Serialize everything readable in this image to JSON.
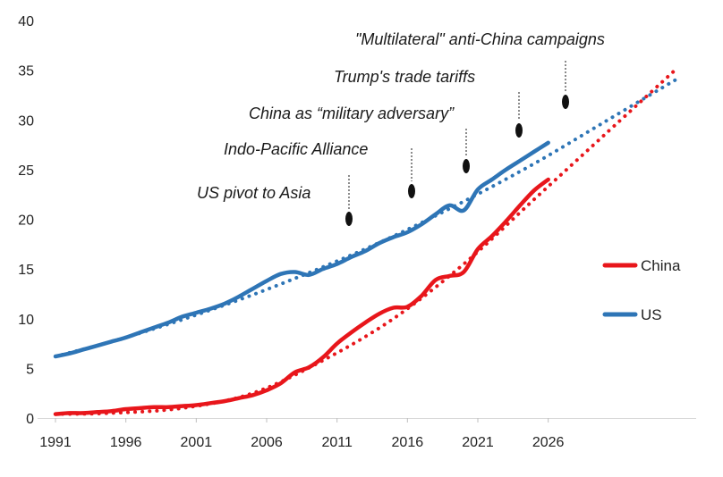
{
  "chart_data": {
    "type": "line",
    "title": "",
    "xlabel": "",
    "ylabel": "",
    "xlim": [
      1991,
      2036
    ],
    "ylim": [
      0,
      40
    ],
    "x_ticks": [
      "1991",
      "1996",
      "2001",
      "2006",
      "2011",
      "2016",
      "2021",
      "2026"
    ],
    "y_ticks": [
      "0",
      "5",
      "10",
      "15",
      "20",
      "25",
      "30",
      "35",
      "40"
    ],
    "legend_position": "right",
    "series": [
      {
        "name": "China",
        "color": "#e8161b",
        "x": [
          1991,
          1992,
          1993,
          1994,
          1995,
          1996,
          1997,
          1998,
          1999,
          2000,
          2001,
          2002,
          2003,
          2004,
          2005,
          2006,
          2007,
          2008,
          2009,
          2010,
          2011,
          2012,
          2013,
          2014,
          2015,
          2016,
          2017,
          2018,
          2019,
          2020,
          2021,
          2022,
          2023,
          2024,
          2025,
          2026
        ],
        "values": [
          0.4,
          0.5,
          0.5,
          0.6,
          0.7,
          0.9,
          1.0,
          1.1,
          1.1,
          1.2,
          1.3,
          1.5,
          1.7,
          2.0,
          2.3,
          2.8,
          3.5,
          4.6,
          5.1,
          6.1,
          7.5,
          8.6,
          9.6,
          10.5,
          11.1,
          11.2,
          12.3,
          13.9,
          14.3,
          14.7,
          17.0,
          18.3,
          19.8,
          21.4,
          22.9,
          24.0
        ],
        "trend_x": [
          1991,
          1995,
          2000,
          2005,
          2010,
          2015,
          2020,
          2025,
          2030,
          2035
        ],
        "trend_values": [
          0.4,
          0.5,
          1.0,
          2.5,
          5.8,
          10.0,
          15.5,
          22.0,
          28.5,
          35.0
        ]
      },
      {
        "name": "US",
        "color": "#2e75b6",
        "x": [
          1991,
          1992,
          1993,
          1994,
          1995,
          1996,
          1997,
          1998,
          1999,
          2000,
          2001,
          2002,
          2003,
          2004,
          2005,
          2006,
          2007,
          2008,
          2009,
          2010,
          2011,
          2012,
          2013,
          2014,
          2015,
          2016,
          2017,
          2018,
          2019,
          2020,
          2021,
          2022,
          2023,
          2024,
          2025,
          2026
        ],
        "values": [
          6.2,
          6.5,
          6.9,
          7.3,
          7.7,
          8.1,
          8.6,
          9.1,
          9.6,
          10.2,
          10.6,
          11.0,
          11.5,
          12.2,
          13.0,
          13.8,
          14.5,
          14.7,
          14.4,
          15.0,
          15.5,
          16.2,
          16.8,
          17.6,
          18.2,
          18.7,
          19.5,
          20.5,
          21.4,
          20.9,
          23.0,
          24.0,
          25.0,
          25.9,
          26.8,
          27.7
        ],
        "trend_x": [
          1991,
          1995,
          2000,
          2005,
          2010,
          2015,
          2020,
          2025,
          2030,
          2035
        ],
        "trend_values": [
          6.2,
          7.7,
          9.9,
          12.4,
          15.2,
          18.3,
          21.8,
          25.6,
          29.8,
          34.0
        ]
      }
    ],
    "annotations": [
      {
        "text": "US pivot to Asia",
        "x": 2010
      },
      {
        "text": "Indo-Pacific Alliance",
        "x": 2014.5
      },
      {
        "text": "China as “military adversary”",
        "x": 2018
      },
      {
        "text": "Trump's trade tariffs",
        "x": 2022
      },
      {
        "text": "\"Multilateral\" anti-China campaigns",
        "x": 2025
      }
    ]
  }
}
